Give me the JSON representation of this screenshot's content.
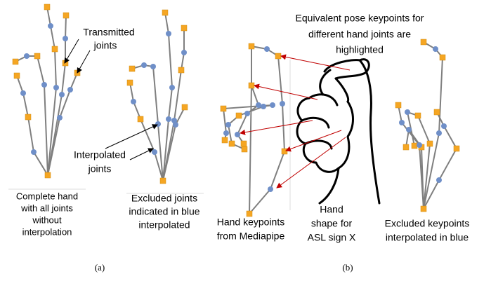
{
  "panel_a": {
    "transmitted_label": [
      "Transmitted",
      "joints"
    ],
    "interpolated_label": [
      "Interpolated",
      "joints"
    ],
    "left_caption": [
      "Complete hand",
      "with all joints",
      "without",
      "interpolation"
    ],
    "right_caption": [
      "Excluded joints",
      "indicated in blue",
      "interpolated"
    ],
    "caption": "(a)"
  },
  "panel_b": {
    "top_label": [
      "Equivalent pose keypoints for",
      "different hand joints are",
      "highlighted"
    ],
    "mediapipe_caption": [
      "Hand keypoints",
      "from Mediapipe"
    ],
    "asl_caption": [
      "Hand",
      "shape for",
      "ASL sign X"
    ],
    "excluded_caption": [
      "Excluded keypoints",
      "interpolated in blue"
    ],
    "caption": "(b)"
  }
}
